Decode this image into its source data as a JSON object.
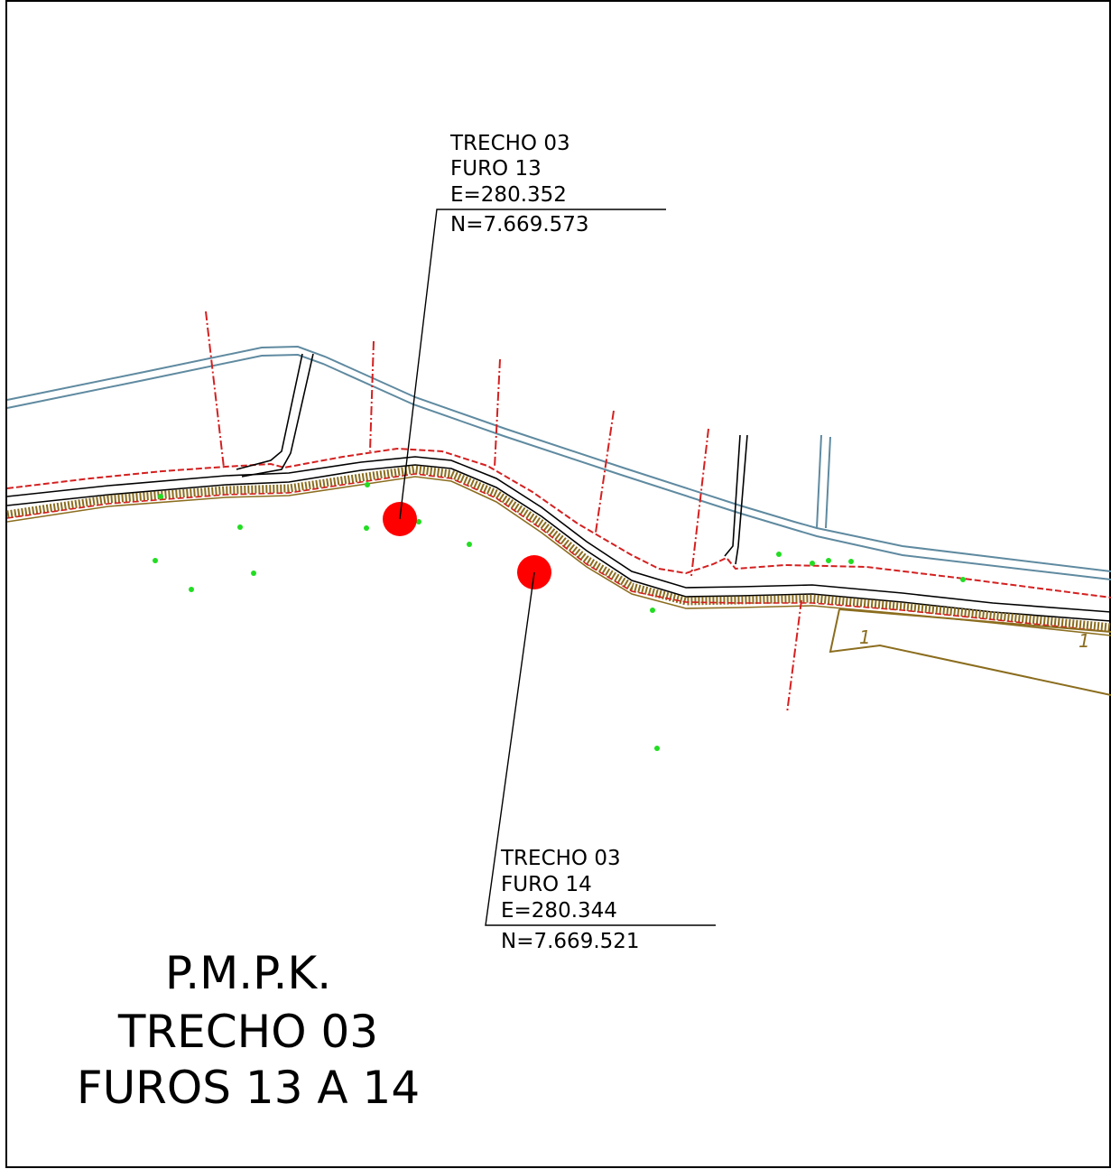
{
  "labels": {
    "furo13": {
      "trecho": "TRECHO 03",
      "furo": "FURO 13",
      "e": "E=280.352",
      "n": "N=7.669.573"
    },
    "furo14": {
      "trecho": "TRECHO 03",
      "furo": "FURO 14",
      "e": "E=280.344",
      "n": "N=7.669.521"
    }
  },
  "title_block": {
    "line1": "P.M.P.K.",
    "line2": "TRECHO 03",
    "line3": "FUROS 13 A 14"
  },
  "parcel_marks": [
    "1",
    "1"
  ],
  "colors": {
    "road_edge": "#d42020",
    "water_line": "#5f8aa0",
    "embankment": "#8b6d1e",
    "borehole": "#ff0000",
    "survey_point": "#22dd22",
    "ink": "#000000"
  }
}
